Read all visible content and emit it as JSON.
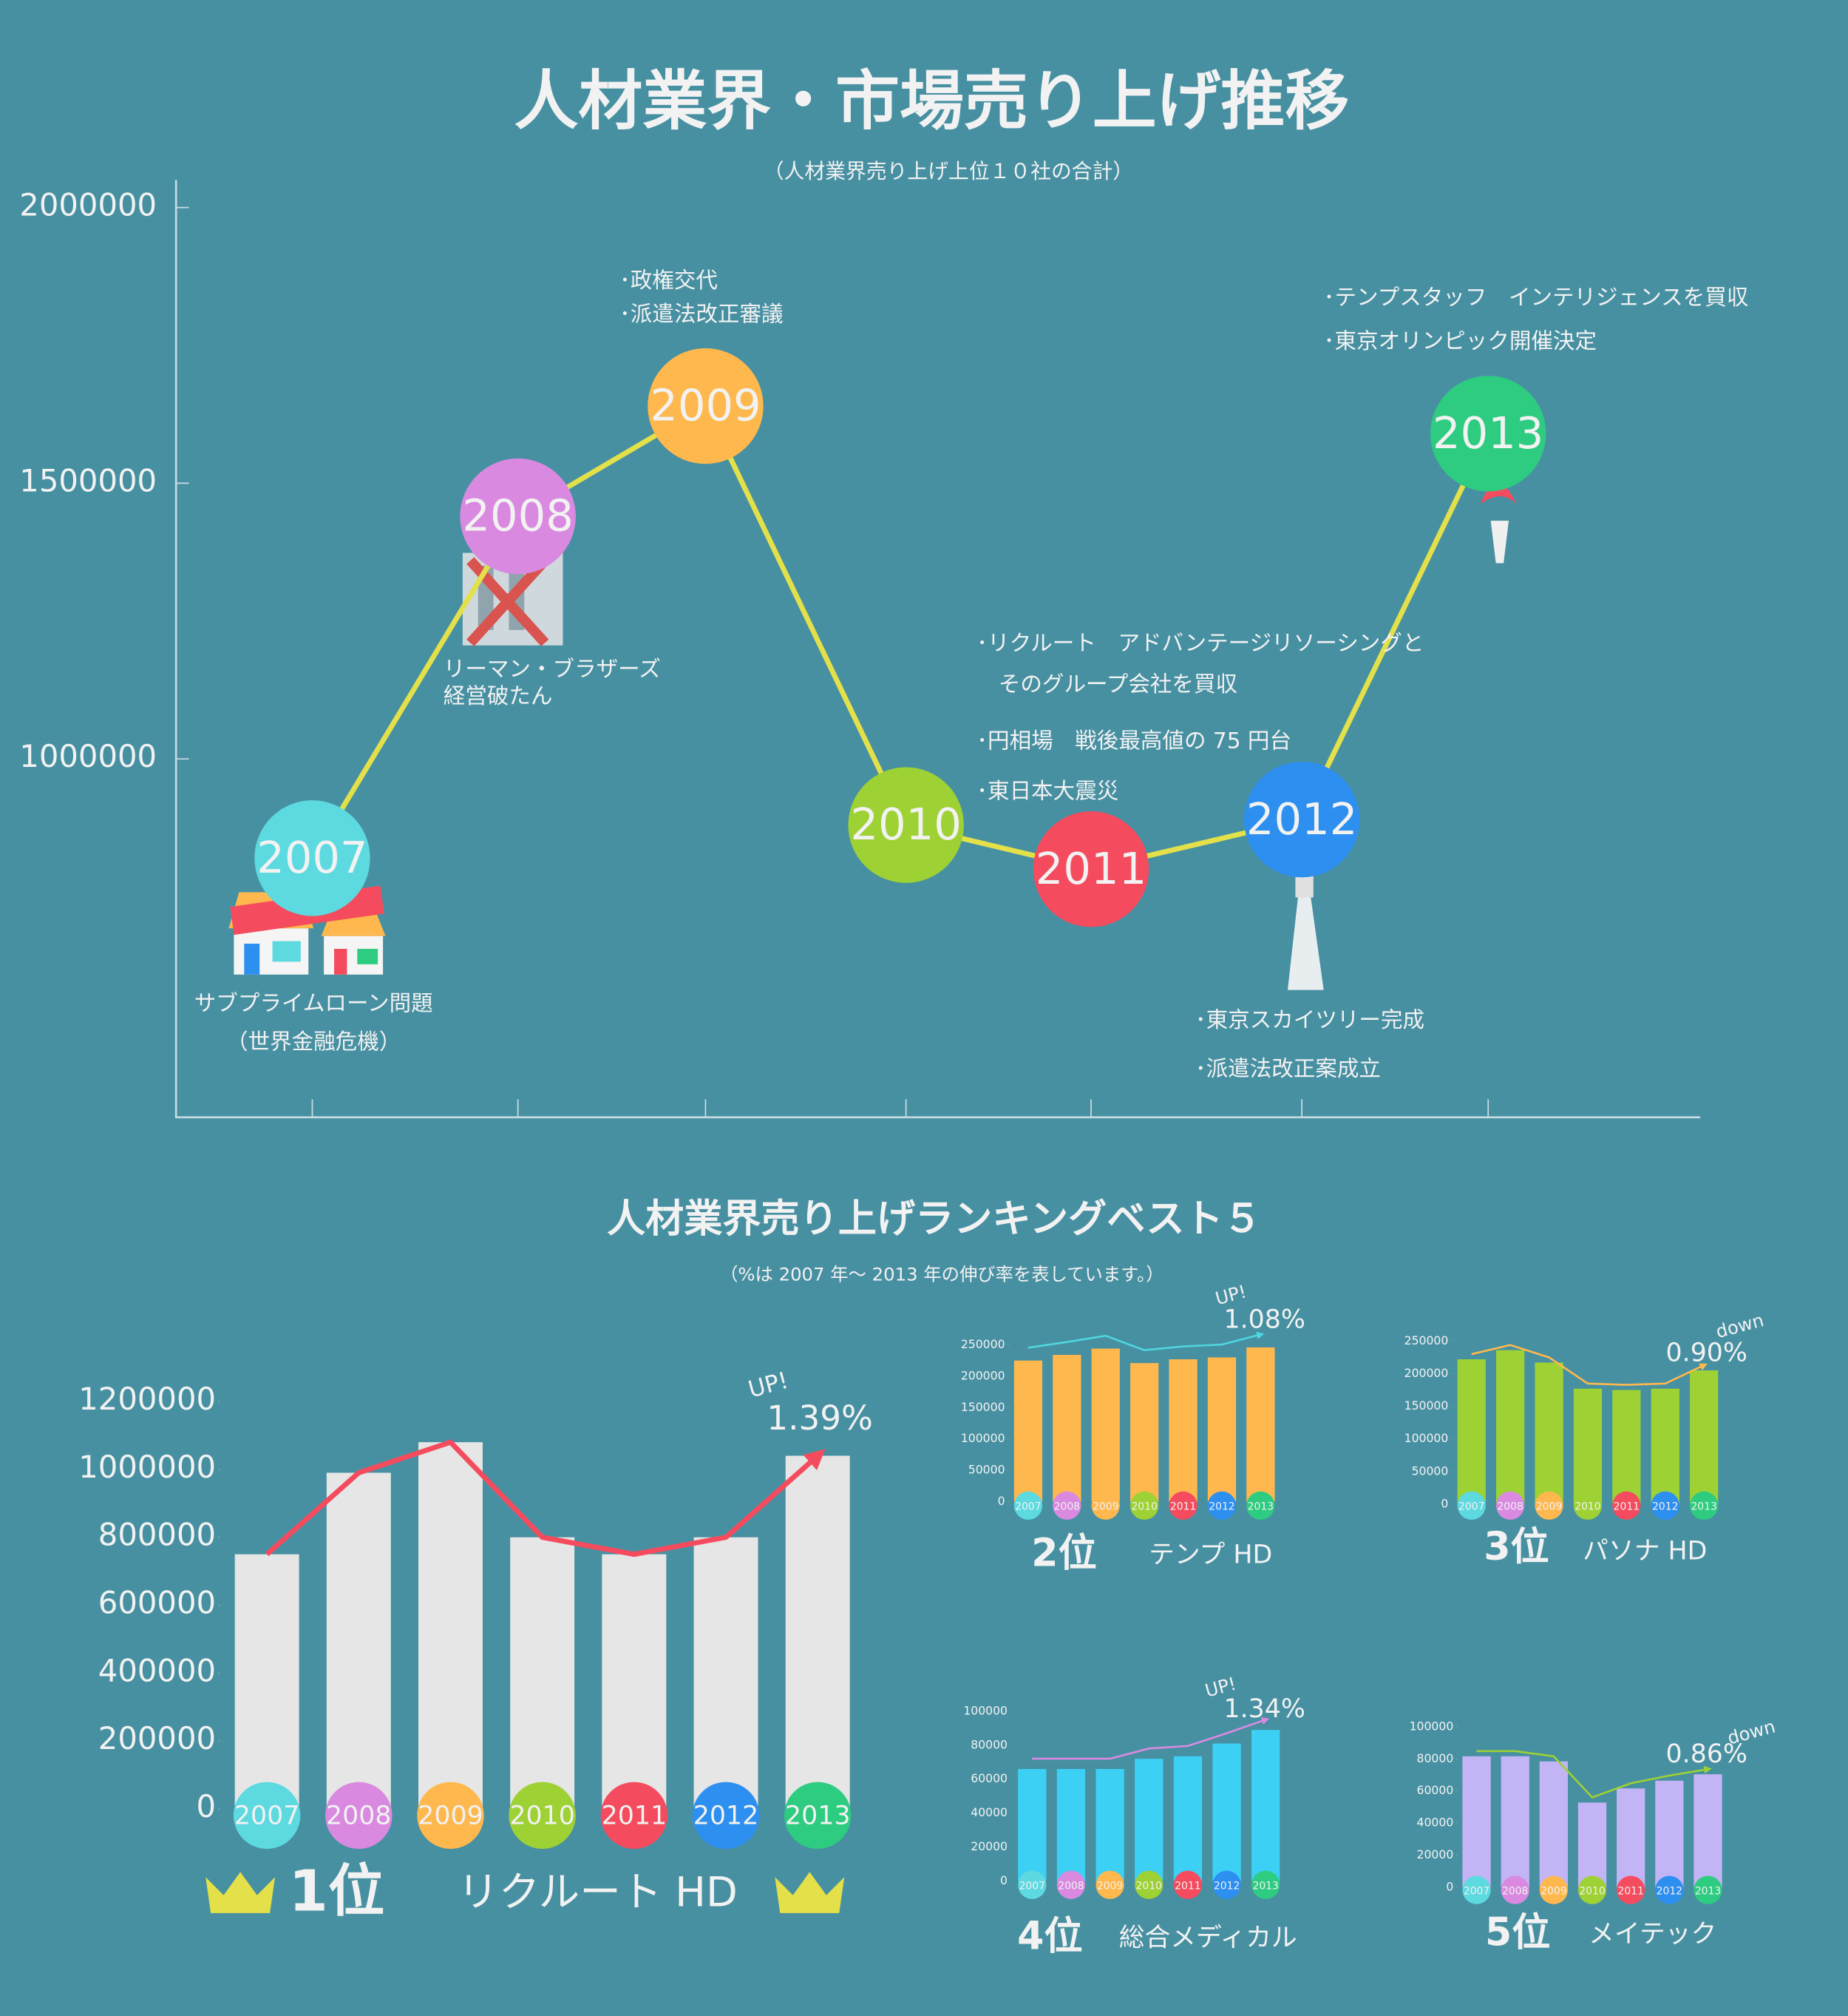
{
  "title": "人材業界・市場売り上げ推移",
  "subtitle": "（人材業界売り上げ上位１０社の合計）",
  "ranking": {
    "title": "人材業界売り上げランキングベスト５",
    "note": "（%は 2007 年〜 2013 年の伸び率を表しています。）"
  },
  "chart_data": [
    {
      "type": "line",
      "categories": [
        "2007",
        "2008",
        "2009",
        "2010",
        "2011",
        "2012",
        "2013"
      ],
      "values": [
        820000,
        1440000,
        1640000,
        880000,
        800000,
        890000,
        1590000
      ],
      "colors": [
        "#5dd9e0",
        "#d98ae0",
        "#ffb84d",
        "#9ed134",
        "#f44c5e",
        "#2d8ff0",
        "#2ecc80"
      ],
      "line_color": "#e3e04a",
      "ylim": [
        350000,
        2050000
      ],
      "yticks": [
        1000000,
        1500000,
        2000000
      ],
      "annotations": [
        [
          "サブプライムローン問題",
          "（世界金融危機）"
        ],
        [
          "リーマン・ブラザーズ",
          "経営破たん"
        ],
        [
          "･政権交代",
          "･派遣法改正審議"
        ],
        [
          "･リクルート　アドバンテージリソーシングと",
          "　そのグループ会社を買収",
          "･円相場　戦後最高値の 75 円台",
          "･東日本大震災"
        ],
        [
          "･東京スカイツリー完成",
          "･派遣法改正案成立"
        ],
        [
          "･テンプスタッフ　インテリジェンスを買収",
          "･東京オリンピック開催決定"
        ]
      ]
    },
    {
      "type": "bar",
      "rank": "1位",
      "name": "リクルート HD",
      "growth": "1.39%",
      "trend": "UP!",
      "categories": [
        "2007",
        "2008",
        "2009",
        "2010",
        "2011",
        "2012",
        "2013"
      ],
      "values": [
        750000,
        990000,
        1080000,
        800000,
        750000,
        800000,
        1040000
      ],
      "color": "#e6e6e6",
      "line_color": "#f44c5e",
      "ylim": [
        0,
        1200000
      ],
      "yticks": [
        0,
        200000,
        400000,
        600000,
        800000,
        1000000,
        1200000
      ]
    },
    {
      "type": "bar",
      "rank": "2位",
      "name": "テンプ HD",
      "growth": "1.08%",
      "trend": "UP!",
      "categories": [
        "2007",
        "2008",
        "2009",
        "2010",
        "2011",
        "2012",
        "2013"
      ],
      "values": [
        225000,
        234000,
        244000,
        221000,
        227000,
        230000,
        246000
      ],
      "color": "#ffb84d",
      "line_color": "#4fd6e0",
      "ylim": [
        0,
        250000
      ],
      "yticks": [
        0,
        50000,
        100000,
        150000,
        200000,
        250000
      ]
    },
    {
      "type": "bar",
      "rank": "3位",
      "name": "パソナ HD",
      "growth": "0.90%",
      "trend": "down",
      "categories": [
        "2007",
        "2008",
        "2009",
        "2010",
        "2011",
        "2012",
        "2013"
      ],
      "values": [
        222000,
        236000,
        217000,
        177000,
        175000,
        177000,
        205000
      ],
      "color": "#9ed134",
      "line_color": "#ffb84d",
      "ylim": [
        0,
        250000
      ],
      "yticks": [
        0,
        50000,
        100000,
        150000,
        200000,
        250000
      ]
    },
    {
      "type": "bar",
      "rank": "4位",
      "name": "総合メディカル",
      "growth": "1.34%",
      "trend": "UP!",
      "categories": [
        "2007",
        "2008",
        "2009",
        "2010",
        "2011",
        "2012",
        "2013"
      ],
      "values": [
        66000,
        66000,
        66000,
        72000,
        73500,
        81000,
        89000
      ],
      "color": "#3dd0f5",
      "line_color": "#d98ae0",
      "ylim": [
        0,
        100000
      ],
      "yticks": [
        0,
        20000,
        40000,
        60000,
        80000,
        100000
      ]
    },
    {
      "type": "bar",
      "rank": "5位",
      "name": "メイテック",
      "growth": "0.86%",
      "trend": "down",
      "categories": [
        "2007",
        "2008",
        "2009",
        "2010",
        "2011",
        "2012",
        "2013"
      ],
      "values": [
        81600,
        81600,
        78400,
        52800,
        61600,
        66400,
        70400
      ],
      "color": "#c3b4f5",
      "line_color": "#9ed134",
      "ylim": [
        0,
        100000
      ],
      "yticks": [
        0,
        20000,
        40000,
        60000,
        80000,
        100000
      ]
    }
  ]
}
